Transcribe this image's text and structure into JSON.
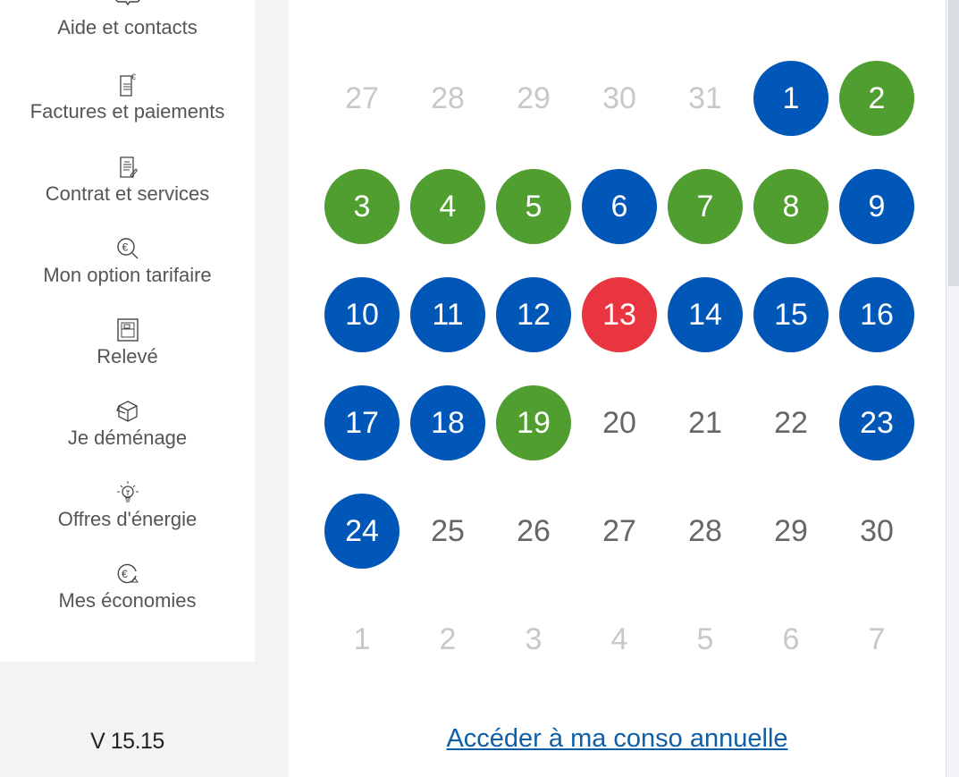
{
  "sidebar": {
    "items": [
      {
        "label": "Aide et contacts",
        "icon": "chat-bubble-icon"
      },
      {
        "label": "Factures et paiements",
        "icon": "invoice-euro-icon"
      },
      {
        "label": "Contrat et services",
        "icon": "contract-pen-icon"
      },
      {
        "label": "Mon option tarifaire",
        "icon": "euro-search-icon"
      },
      {
        "label": "Relevé",
        "icon": "meter-reading-icon"
      },
      {
        "label": "Je déménage",
        "icon": "moving-box-icon"
      },
      {
        "label": "Offres d'énergie",
        "icon": "lightbulb-icon"
      },
      {
        "label": "Mes économies",
        "icon": "euro-savings-icon"
      }
    ],
    "version": "V 15.15"
  },
  "colors": {
    "blue": "#0057b8",
    "green": "#509e2f",
    "red": "#e8353f"
  },
  "calendar": {
    "weeks": [
      [
        {
          "d": "27",
          "s": "other"
        },
        {
          "d": "28",
          "s": "other"
        },
        {
          "d": "29",
          "s": "other"
        },
        {
          "d": "30",
          "s": "other"
        },
        {
          "d": "31",
          "s": "other"
        },
        {
          "d": "1",
          "s": "blue"
        },
        {
          "d": "2",
          "s": "green"
        }
      ],
      [
        {
          "d": "3",
          "s": "green"
        },
        {
          "d": "4",
          "s": "green"
        },
        {
          "d": "5",
          "s": "green"
        },
        {
          "d": "6",
          "s": "blue"
        },
        {
          "d": "7",
          "s": "green"
        },
        {
          "d": "8",
          "s": "green"
        },
        {
          "d": "9",
          "s": "blue"
        }
      ],
      [
        {
          "d": "10",
          "s": "blue"
        },
        {
          "d": "11",
          "s": "blue"
        },
        {
          "d": "12",
          "s": "blue"
        },
        {
          "d": "13",
          "s": "red"
        },
        {
          "d": "14",
          "s": "blue"
        },
        {
          "d": "15",
          "s": "blue"
        },
        {
          "d": "16",
          "s": "blue"
        }
      ],
      [
        {
          "d": "17",
          "s": "blue"
        },
        {
          "d": "18",
          "s": "blue"
        },
        {
          "d": "19",
          "s": "green"
        },
        {
          "d": "20",
          "s": "none"
        },
        {
          "d": "21",
          "s": "none"
        },
        {
          "d": "22",
          "s": "none"
        },
        {
          "d": "23",
          "s": "blue"
        }
      ],
      [
        {
          "d": "24",
          "s": "blue"
        },
        {
          "d": "25",
          "s": "none"
        },
        {
          "d": "26",
          "s": "none"
        },
        {
          "d": "27",
          "s": "none"
        },
        {
          "d": "28",
          "s": "none"
        },
        {
          "d": "29",
          "s": "none"
        },
        {
          "d": "30",
          "s": "none"
        }
      ],
      [
        {
          "d": "1",
          "s": "other"
        },
        {
          "d": "2",
          "s": "other"
        },
        {
          "d": "3",
          "s": "other"
        },
        {
          "d": "4",
          "s": "other"
        },
        {
          "d": "5",
          "s": "other"
        },
        {
          "d": "6",
          "s": "other"
        },
        {
          "d": "7",
          "s": "other"
        }
      ]
    ]
  },
  "annual_link": "Accéder à ma conso annuelle"
}
